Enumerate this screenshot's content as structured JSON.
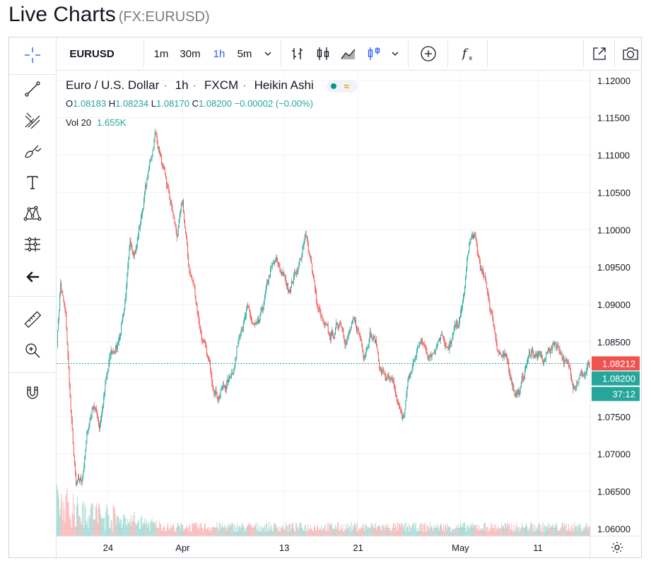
{
  "page": {
    "title": "Live Charts",
    "symbol_sub": "(FX:EURUSD)"
  },
  "toolbar": {
    "symbol": "EURUSD",
    "intervals": [
      "1m",
      "30m",
      "1h",
      "5m"
    ],
    "active_interval": "1h",
    "icons": [
      "bar-chart-icon",
      "candle-chart-icon",
      "area-chart-icon",
      "heikin-ashi-icon",
      "chevron-down-icon",
      "add-compare-icon",
      "indicators-fx-icon",
      "popout-icon",
      "camera-icon"
    ]
  },
  "left_tools": [
    "crosshair-icon",
    "trend-line-icon",
    "pitchfork-icon",
    "brush-icon",
    "text-tool-icon",
    "pattern-icon",
    "prediction-icon",
    "back-arrow-icon",
    "ruler-icon",
    "zoom-in-icon",
    "magnet-icon"
  ],
  "legend": {
    "name": "Euro / U.S. Dollar",
    "interval": "1h",
    "source": "FXCM",
    "style": "Heikin Ashi",
    "o_label": "O",
    "o": "1.08183",
    "h_label": "H",
    "h": "1.08234",
    "l_label": "L",
    "l": "1.08170",
    "c_label": "C",
    "c": "1.08200",
    "change": "−0.00002 (−0.00%)",
    "vol_label": "Vol 20",
    "vol": "1.655K"
  },
  "price_labels": {
    "bid": "1.08212",
    "last": "1.08200",
    "countdown": "37:12"
  },
  "chart_data": {
    "type": "candlestick",
    "y_ticks": [
      "1.12000",
      "1.11500",
      "1.11000",
      "1.10500",
      "1.10000",
      "1.09500",
      "1.09000",
      "1.08500",
      "1.08000",
      "1.07500",
      "1.07000",
      "1.06500",
      "1.06000"
    ],
    "ylim": [
      1.059,
      1.1213
    ],
    "x_ticks": [
      "24",
      "Apr",
      "13",
      "21",
      "May",
      "11"
    ],
    "x_tick_index": [
      70,
      172,
      311,
      412,
      552,
      658
    ],
    "anchors": [
      [
        0,
        1.085
      ],
      [
        5,
        1.093
      ],
      [
        12,
        1.088
      ],
      [
        20,
        1.074
      ],
      [
        26,
        1.065
      ],
      [
        34,
        1.066
      ],
      [
        42,
        1.073
      ],
      [
        50,
        1.077
      ],
      [
        58,
        1.074
      ],
      [
        66,
        1.079
      ],
      [
        74,
        1.083
      ],
      [
        82,
        1.084
      ],
      [
        92,
        1.09
      ],
      [
        100,
        1.097
      ],
      [
        108,
        1.098
      ],
      [
        114,
        1.101
      ],
      [
        120,
        1.105
      ],
      [
        128,
        1.109
      ],
      [
        134,
        1.113
      ],
      [
        140,
        1.111
      ],
      [
        148,
        1.106
      ],
      [
        156,
        1.103
      ],
      [
        164,
        1.099
      ],
      [
        172,
        1.103
      ],
      [
        180,
        1.095
      ],
      [
        188,
        1.092
      ],
      [
        196,
        1.087
      ],
      [
        204,
        1.083
      ],
      [
        212,
        1.08
      ],
      [
        220,
        1.0785
      ],
      [
        228,
        1.079
      ],
      [
        236,
        1.08
      ],
      [
        244,
        1.083
      ],
      [
        252,
        1.088
      ],
      [
        260,
        1.089
      ],
      [
        268,
        1.087
      ],
      [
        276,
        1.086
      ],
      [
        284,
        1.09
      ],
      [
        292,
        1.094
      ],
      [
        300,
        1.095
      ],
      [
        308,
        1.094
      ],
      [
        316,
        1.092
      ],
      [
        324,
        1.094
      ],
      [
        332,
        1.096
      ],
      [
        340,
        1.0985
      ],
      [
        348,
        1.096
      ],
      [
        356,
        1.09
      ],
      [
        364,
        1.087
      ],
      [
        372,
        1.085
      ],
      [
        380,
        1.086
      ],
      [
        388,
        1.088
      ],
      [
        396,
        1.086
      ],
      [
        404,
        1.087
      ],
      [
        412,
        1.086
      ],
      [
        420,
        1.084
      ],
      [
        428,
        1.087
      ],
      [
        436,
        1.085
      ],
      [
        444,
        1.081
      ],
      [
        452,
        1.08
      ],
      [
        460,
        1.078
      ],
      [
        466,
        1.076
      ],
      [
        472,
        1.074
      ],
      [
        480,
        1.079
      ],
      [
        488,
        1.082
      ],
      [
        496,
        1.085
      ],
      [
        504,
        1.084
      ],
      [
        512,
        1.083
      ],
      [
        520,
        1.086
      ],
      [
        528,
        1.087
      ],
      [
        536,
        1.084
      ],
      [
        544,
        1.086
      ],
      [
        552,
        1.088
      ],
      [
        558,
        1.092
      ],
      [
        564,
        1.098
      ],
      [
        570,
        1.099
      ],
      [
        576,
        1.096
      ],
      [
        584,
        1.093
      ],
      [
        590,
        1.091
      ],
      [
        596,
        1.088
      ],
      [
        602,
        1.085
      ],
      [
        610,
        1.083
      ],
      [
        618,
        1.081
      ],
      [
        626,
        1.079
      ],
      [
        634,
        1.0785
      ],
      [
        642,
        1.082
      ],
      [
        650,
        1.084
      ],
      [
        658,
        1.083
      ],
      [
        666,
        1.082
      ],
      [
        674,
        1.084
      ],
      [
        682,
        1.085
      ],
      [
        690,
        1.084
      ],
      [
        698,
        1.0815
      ],
      [
        706,
        1.08
      ],
      [
        714,
        1.081
      ],
      [
        722,
        1.0808
      ],
      [
        729,
        1.082
      ]
    ],
    "up_color": "#26a69a",
    "down_color": "#ef5350",
    "last_price": 1.082,
    "bid_price": 1.08212
  },
  "colors": {
    "accent": "#2962ff",
    "up": "#26a69a",
    "down": "#ef5350",
    "grid": "#f0f3fa"
  }
}
